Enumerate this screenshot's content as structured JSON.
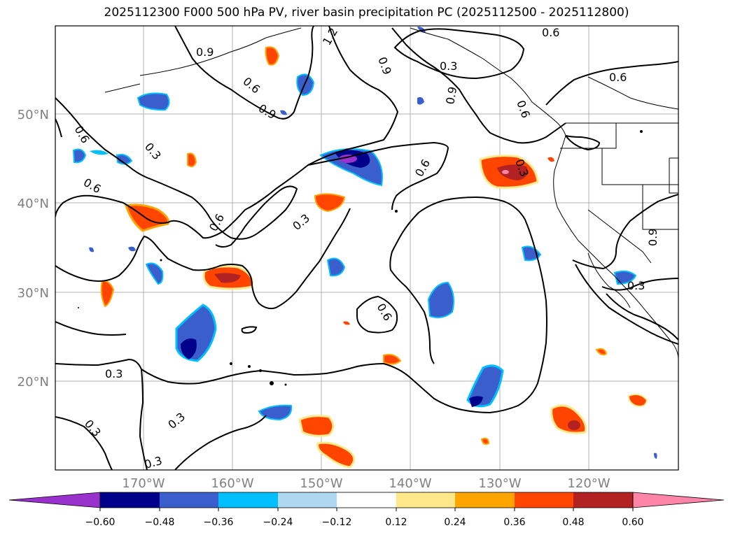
{
  "title": "2025112300 F000 500 hPa PV, river basin precipitation PC (2025112500 - 2025112800)",
  "map": {
    "lat_labels": [
      "50°N",
      "40°N",
      "30°N",
      "20°N"
    ],
    "lon_labels": [
      "170°W",
      "160°W",
      "150°W",
      "140°W",
      "130°W",
      "120°W"
    ],
    "contour_labels": [
      "0.9",
      "1.2",
      "0.6",
      "0.3",
      "0.6",
      "0.9",
      "0.9",
      "0.6",
      "0.6",
      "0.3",
      "0.6",
      "0.3",
      "0.6",
      "0.3",
      "0.6",
      "0.6",
      "0.3",
      "0.9",
      "0.6",
      "0.9",
      "0.3",
      "0.3",
      "0.3",
      "0.3"
    ],
    "colors": {
      "contour": "#000000",
      "grid": "#b0b0b0",
      "tick_label": "#808080"
    }
  },
  "colorbar": {
    "ticks": [
      "−0.60",
      "−0.48",
      "−0.36",
      "−0.24",
      "−0.12",
      "0.12",
      "0.24",
      "0.36",
      "0.48",
      "0.60"
    ],
    "colors": [
      "#9932cc",
      "#00008b",
      "#3a5fcd",
      "#00bfff",
      "#add8f0",
      "#ffffff",
      "#ffe88a",
      "#ffa500",
      "#ff4500",
      "#b22222",
      "#ff85a8"
    ]
  }
}
